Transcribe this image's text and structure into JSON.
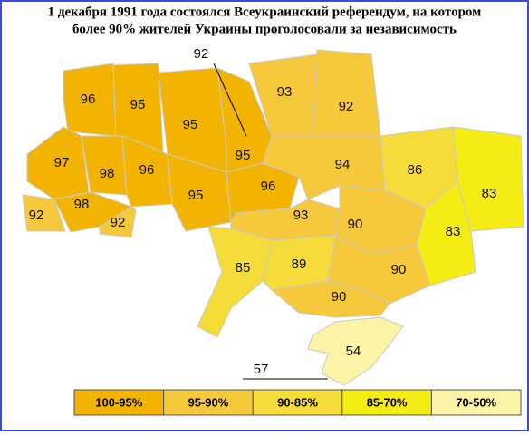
{
  "title": [
    "1 декабря 1991 года состоялся Всеукраинский референдум, на котором",
    "более 90% жителей Украины проголосовали за независимость"
  ],
  "regions": [
    "96",
    "95",
    "95",
    "95",
    "92",
    "93",
    "92",
    "94",
    "86",
    "83",
    "83",
    "97",
    "98",
    "96",
    "95",
    "96",
    "93",
    "90",
    "92",
    "98",
    "92",
    "85",
    "89",
    "90",
    "90",
    "54",
    "57"
  ],
  "legend": [
    "100-95%",
    "95-90%",
    "90-85%",
    "85-70%",
    "70-50%"
  ]
}
